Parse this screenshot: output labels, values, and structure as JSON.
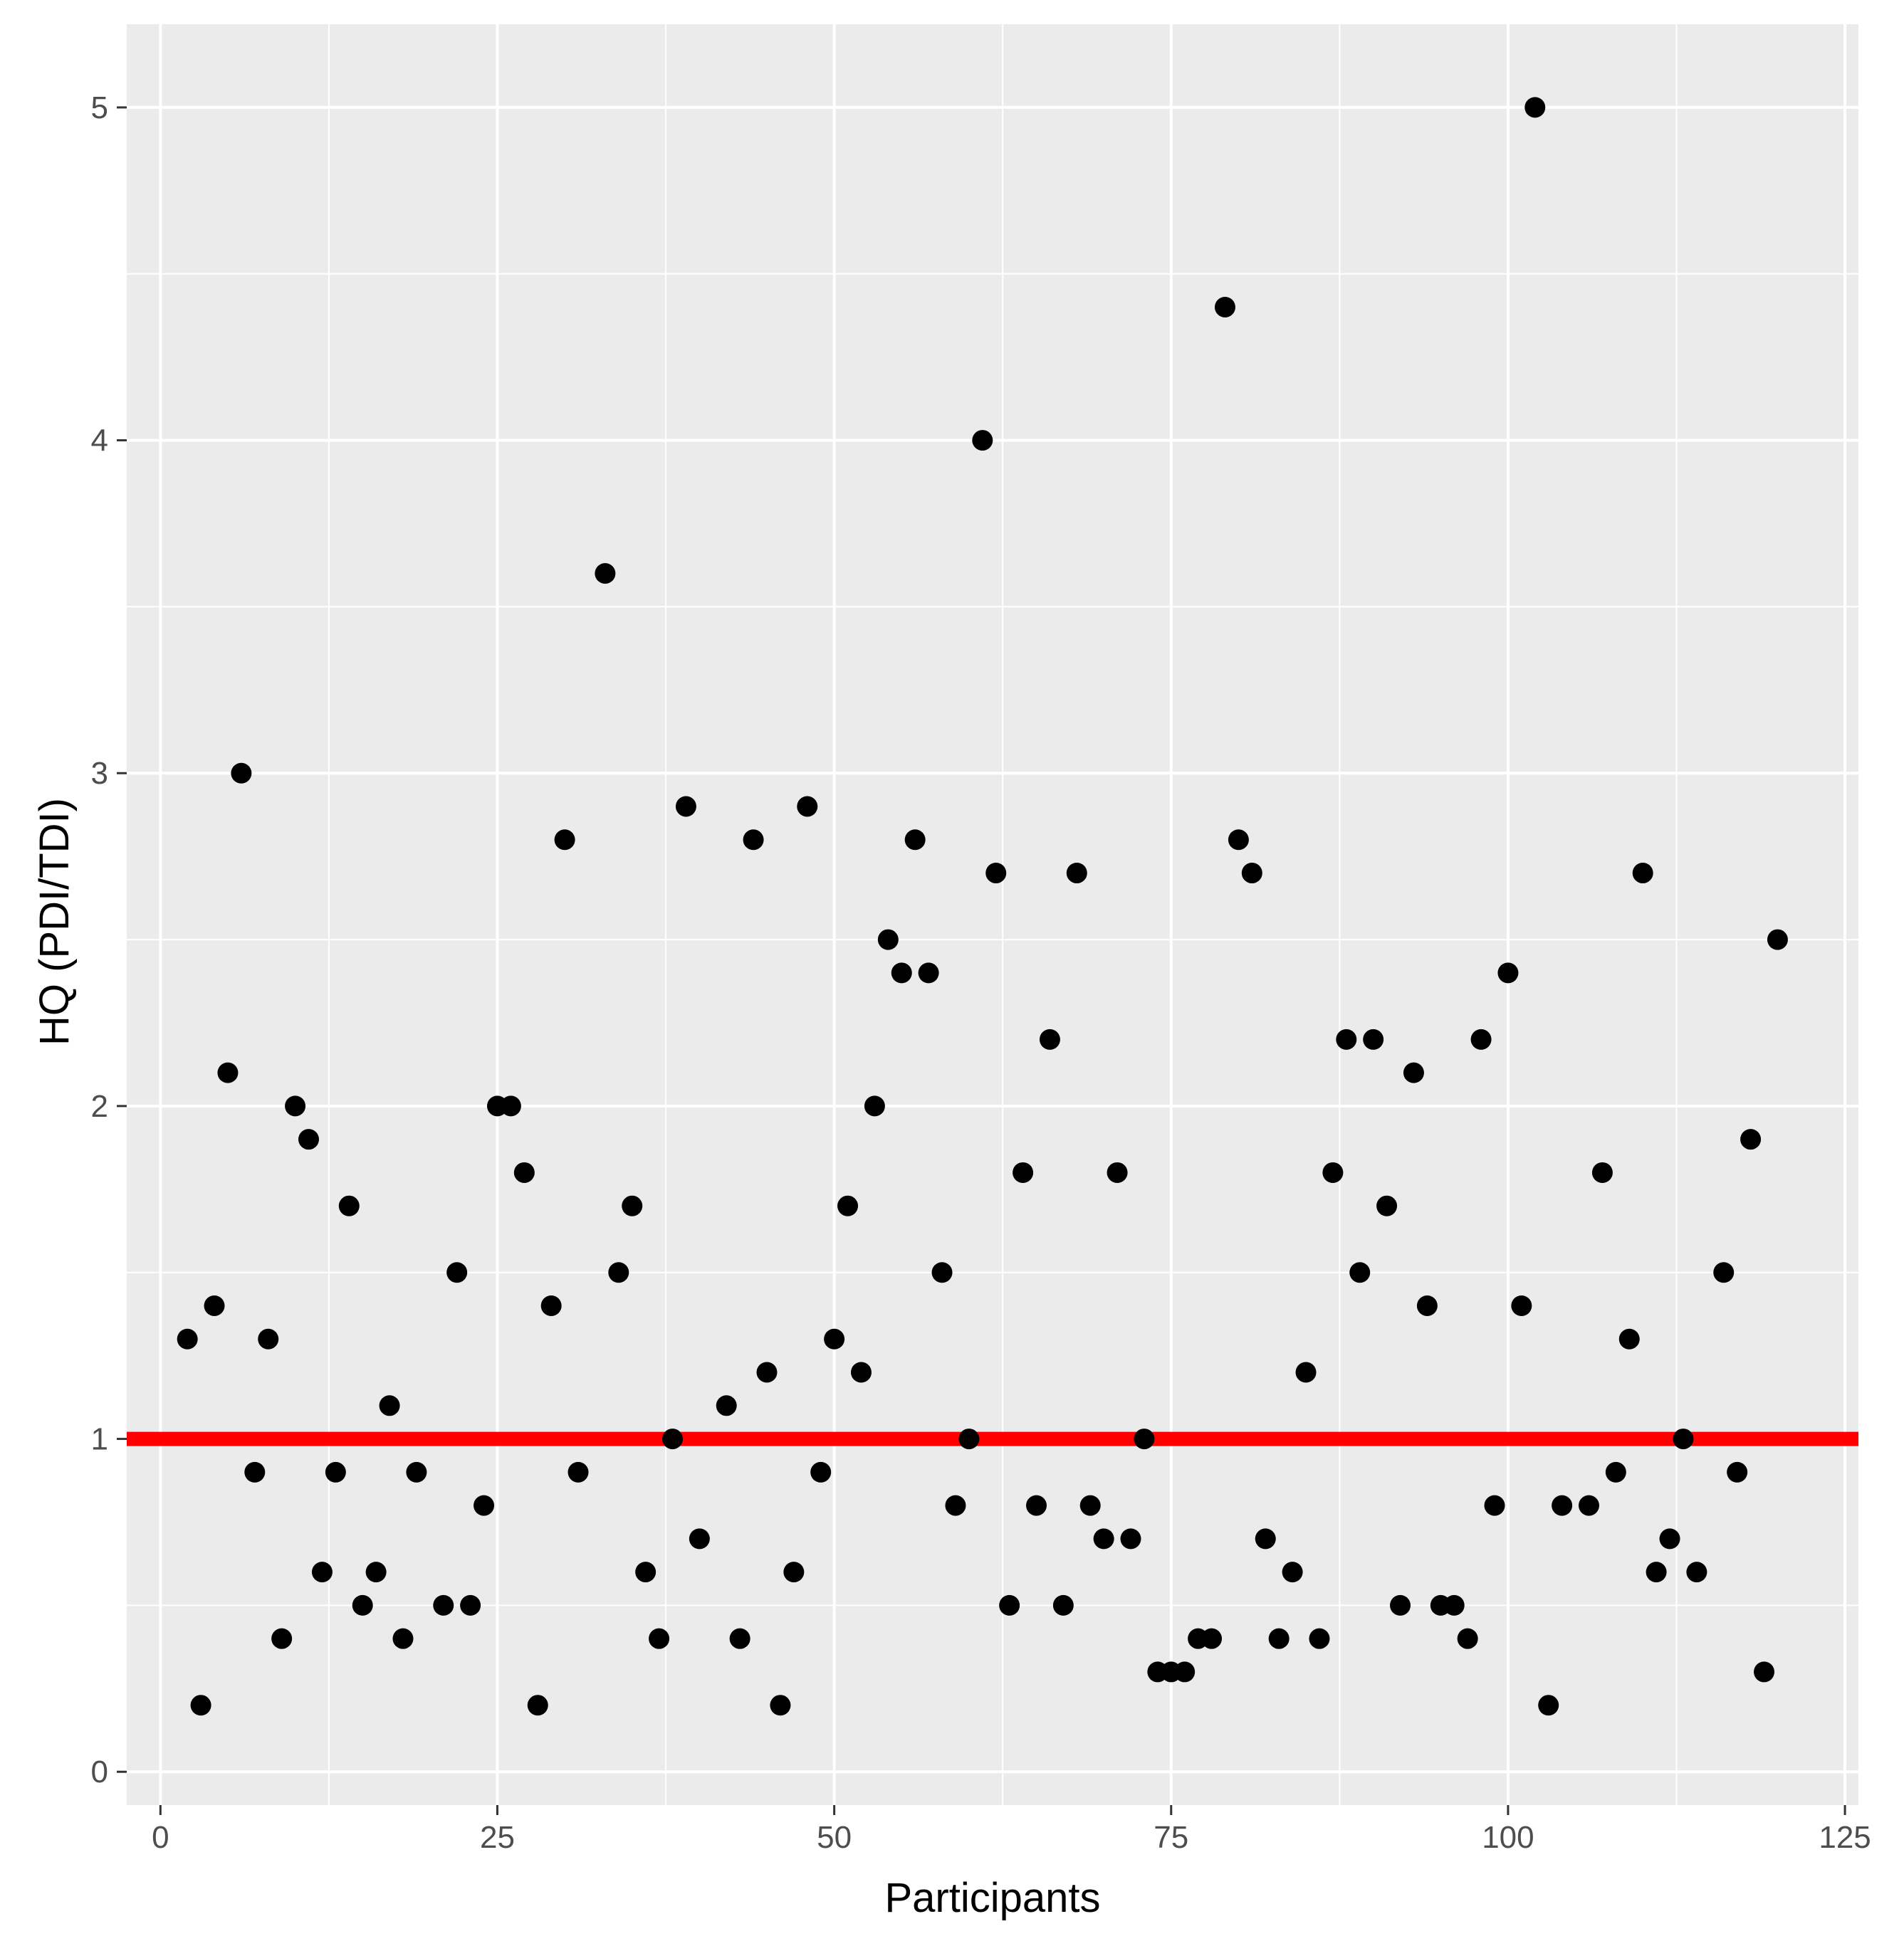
{
  "chart_data": {
    "type": "scatter",
    "title": "",
    "xlabel": "Participants",
    "ylabel": "HQ (PDI/TDI)",
    "xlim": [
      -2.5,
      126
    ],
    "ylim": [
      -0.1,
      5.25
    ],
    "x_ticks": [
      0,
      25,
      50,
      75,
      100,
      125
    ],
    "y_ticks": [
      0,
      1,
      2,
      3,
      4,
      5
    ],
    "grid": true,
    "background": "#ebebeb",
    "grid_color": "#ffffff",
    "point_color": "#000000",
    "reference_line": {
      "y": 1,
      "color": "#ff0000"
    },
    "points": [
      [
        2,
        1.3
      ],
      [
        3,
        0.2
      ],
      [
        4,
        1.4
      ],
      [
        5,
        2.1
      ],
      [
        6,
        3.0
      ],
      [
        7,
        0.9
      ],
      [
        8,
        1.3
      ],
      [
        9,
        0.4
      ],
      [
        10,
        2.0
      ],
      [
        11,
        1.9
      ],
      [
        12,
        0.6
      ],
      [
        13,
        0.9
      ],
      [
        14,
        1.7
      ],
      [
        15,
        0.5
      ],
      [
        16,
        0.6
      ],
      [
        17,
        1.1
      ],
      [
        18,
        0.4
      ],
      [
        19,
        0.9
      ],
      [
        21,
        0.5
      ],
      [
        22,
        1.5
      ],
      [
        23,
        0.5
      ],
      [
        24,
        0.8
      ],
      [
        25,
        2.0
      ],
      [
        26,
        2.0
      ],
      [
        27,
        1.8
      ],
      [
        28,
        0.2
      ],
      [
        29,
        1.4
      ],
      [
        30,
        2.8
      ],
      [
        31,
        0.9
      ],
      [
        33,
        3.6
      ],
      [
        34,
        1.5
      ],
      [
        35,
        1.7
      ],
      [
        36,
        0.6
      ],
      [
        37,
        0.4
      ],
      [
        38,
        1.0
      ],
      [
        39,
        2.9
      ],
      [
        40,
        0.7
      ],
      [
        42,
        1.1
      ],
      [
        43,
        0.4
      ],
      [
        44,
        2.8
      ],
      [
        45,
        1.2
      ],
      [
        46,
        0.2
      ],
      [
        47,
        0.6
      ],
      [
        48,
        2.9
      ],
      [
        49,
        0.9
      ],
      [
        50,
        1.3
      ],
      [
        51,
        1.7
      ],
      [
        52,
        1.2
      ],
      [
        53,
        2.0
      ],
      [
        54,
        2.5
      ],
      [
        55,
        2.4
      ],
      [
        56,
        2.8
      ],
      [
        57,
        2.4
      ],
      [
        58,
        1.5
      ],
      [
        59,
        0.8
      ],
      [
        60,
        1.0
      ],
      [
        61,
        4.0
      ],
      [
        62,
        2.7
      ],
      [
        63,
        0.5
      ],
      [
        64,
        1.8
      ],
      [
        65,
        0.8
      ],
      [
        66,
        2.2
      ],
      [
        67,
        0.5
      ],
      [
        68,
        2.7
      ],
      [
        69,
        0.8
      ],
      [
        70,
        0.7
      ],
      [
        71,
        1.8
      ],
      [
        72,
        0.7
      ],
      [
        73,
        1.0
      ],
      [
        74,
        0.3
      ],
      [
        75,
        0.3
      ],
      [
        76,
        0.3
      ],
      [
        77,
        0.4
      ],
      [
        78,
        0.4
      ],
      [
        79,
        4.4
      ],
      [
        80,
        2.8
      ],
      [
        81,
        2.7
      ],
      [
        82,
        0.7
      ],
      [
        83,
        0.4
      ],
      [
        84,
        0.6
      ],
      [
        85,
        1.2
      ],
      [
        86,
        0.4
      ],
      [
        87,
        1.8
      ],
      [
        88,
        2.2
      ],
      [
        89,
        1.5
      ],
      [
        90,
        2.2
      ],
      [
        91,
        1.7
      ],
      [
        92,
        0.5
      ],
      [
        93,
        2.1
      ],
      [
        94,
        1.4
      ],
      [
        95,
        0.5
      ],
      [
        96,
        0.5
      ],
      [
        97,
        0.4
      ],
      [
        98,
        2.2
      ],
      [
        99,
        0.8
      ],
      [
        100,
        2.4
      ],
      [
        101,
        1.4
      ],
      [
        102,
        5.0
      ],
      [
        103,
        0.2
      ],
      [
        104,
        0.8
      ],
      [
        106,
        0.8
      ],
      [
        107,
        1.8
      ],
      [
        108,
        0.9
      ],
      [
        109,
        1.3
      ],
      [
        110,
        2.7
      ],
      [
        111,
        0.6
      ],
      [
        112,
        0.7
      ],
      [
        113,
        1.0
      ],
      [
        114,
        0.6
      ],
      [
        116,
        1.5
      ],
      [
        117,
        0.9
      ],
      [
        118,
        1.9
      ],
      [
        119,
        0.3
      ],
      [
        120,
        2.5
      ]
    ]
  }
}
